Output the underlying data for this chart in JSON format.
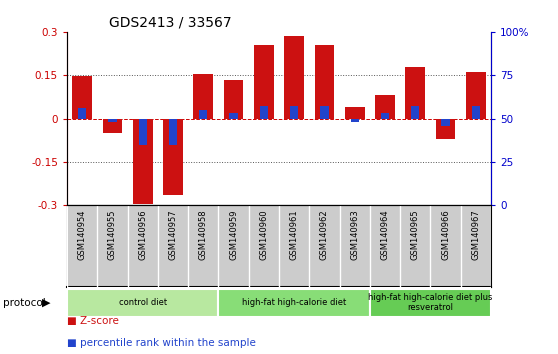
{
  "title": "GDS2413 / 33567",
  "samples": [
    "GSM140954",
    "GSM140955",
    "GSM140956",
    "GSM140957",
    "GSM140958",
    "GSM140959",
    "GSM140960",
    "GSM140961",
    "GSM140962",
    "GSM140963",
    "GSM140964",
    "GSM140965",
    "GSM140966",
    "GSM140967"
  ],
  "zscore": [
    0.148,
    -0.05,
    -0.295,
    -0.265,
    0.155,
    0.135,
    0.255,
    0.285,
    0.255,
    0.04,
    0.08,
    0.18,
    -0.07,
    0.16
  ],
  "pct_values": [
    56,
    48,
    35,
    35,
    55,
    53,
    57,
    57,
    57,
    48,
    53,
    57,
    46,
    57
  ],
  "groups": [
    {
      "label": "control diet",
      "start": 0,
      "end": 4,
      "color": "#b3e6a8"
    },
    {
      "label": "high-fat high-calorie diet",
      "start": 5,
      "end": 9,
      "color": "#88d97a"
    },
    {
      "label": "high-fat high-calorie diet plus\nresveratrol",
      "start": 10,
      "end": 13,
      "color": "#66cc55"
    }
  ],
  "ylim": [
    -0.3,
    0.3
  ],
  "yticks_left": [
    -0.3,
    -0.15,
    0.0,
    0.15,
    0.3
  ],
  "yticks_right": [
    0,
    25,
    50,
    75,
    100
  ],
  "bar_color": "#cc1111",
  "percentile_color": "#2244cc",
  "zero_line_color": "#cc0000",
  "grid_color": "#555555",
  "bg_color": "#ffffff",
  "plot_bg": "#ffffff",
  "tick_color_left": "#cc0000",
  "tick_color_right": "#0000cc",
  "label_bg": "#cccccc",
  "group1_color": "#b8e8a0",
  "group2_color": "#88dd77",
  "group3_color": "#66cc55"
}
